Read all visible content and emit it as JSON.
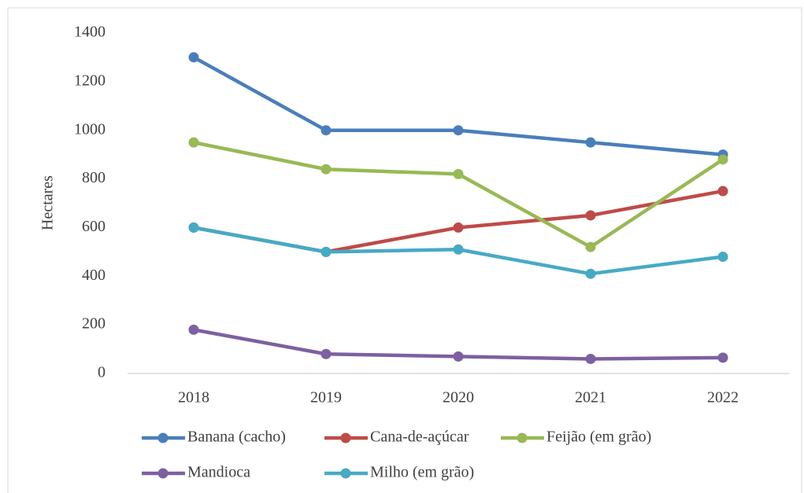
{
  "chart_data": {
    "type": "line",
    "y_label": "Hectares",
    "categories": [
      "2018",
      "2019",
      "2020",
      "2021",
      "2022"
    ],
    "series": [
      {
        "name": "Banana (cacho)",
        "color": "#4a7ebb",
        "values": [
          1300,
          1000,
          1000,
          950,
          900
        ]
      },
      {
        "name": "Cana-de-açúcar",
        "color": "#be4b48",
        "values": [
          600,
          500,
          600,
          650,
          750
        ]
      },
      {
        "name": "Feijão (em grão)",
        "color": "#98b954",
        "values": [
          950,
          840,
          820,
          520,
          880
        ]
      },
      {
        "name": "Mandioca",
        "color": "#7d60a0",
        "values": [
          180,
          80,
          70,
          60,
          65
        ]
      },
      {
        "name": "Milho (em grão)",
        "color": "#46aac5",
        "values": [
          600,
          500,
          510,
          410,
          480
        ]
      }
    ],
    "ylim": [
      0,
      1400
    ],
    "yticks": [
      0,
      200,
      400,
      600,
      800,
      1000,
      1200,
      1400
    ],
    "grid": false,
    "legend": "bottom"
  }
}
